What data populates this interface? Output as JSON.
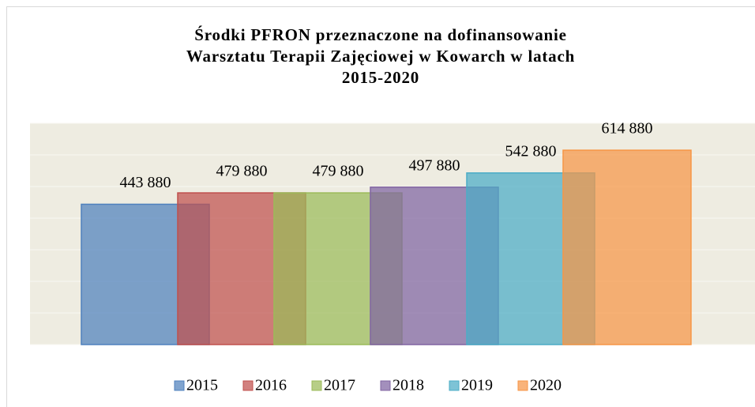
{
  "chart_data": {
    "type": "overlap-bar",
    "title": [
      "Środki PFRON przeznaczone na dofinansowanie",
      "Warsztatu Terapii Zajęciowej w Kowarch w latach",
      "2015-2020"
    ],
    "ylim": [
      0,
      700000
    ],
    "yticks": [
      0,
      100000,
      200000,
      300000,
      400000,
      500000,
      600000,
      700000
    ],
    "grid": true,
    "legend": "bottom",
    "series": [
      {
        "name": "2015",
        "color": "#4f81bd",
        "values": [
          443880
        ],
        "value_labels": [
          "443 880"
        ]
      },
      {
        "name": "2016",
        "color": "#c0504d",
        "values": [
          479880
        ],
        "value_labels": [
          "479 880"
        ]
      },
      {
        "name": "2017",
        "color": "#9bbb59",
        "values": [
          479880
        ],
        "value_labels": [
          "479 880"
        ]
      },
      {
        "name": "2018",
        "color": "#8064a2",
        "values": [
          497880
        ],
        "value_labels": [
          "497 880"
        ]
      },
      {
        "name": "2019",
        "color": "#4bacc6",
        "values": [
          542880
        ],
        "value_labels": [
          "542 880"
        ]
      },
      {
        "name": "2020",
        "color": "#f79646",
        "values": [
          614880
        ],
        "value_labels": [
          "614 880"
        ]
      }
    ]
  }
}
